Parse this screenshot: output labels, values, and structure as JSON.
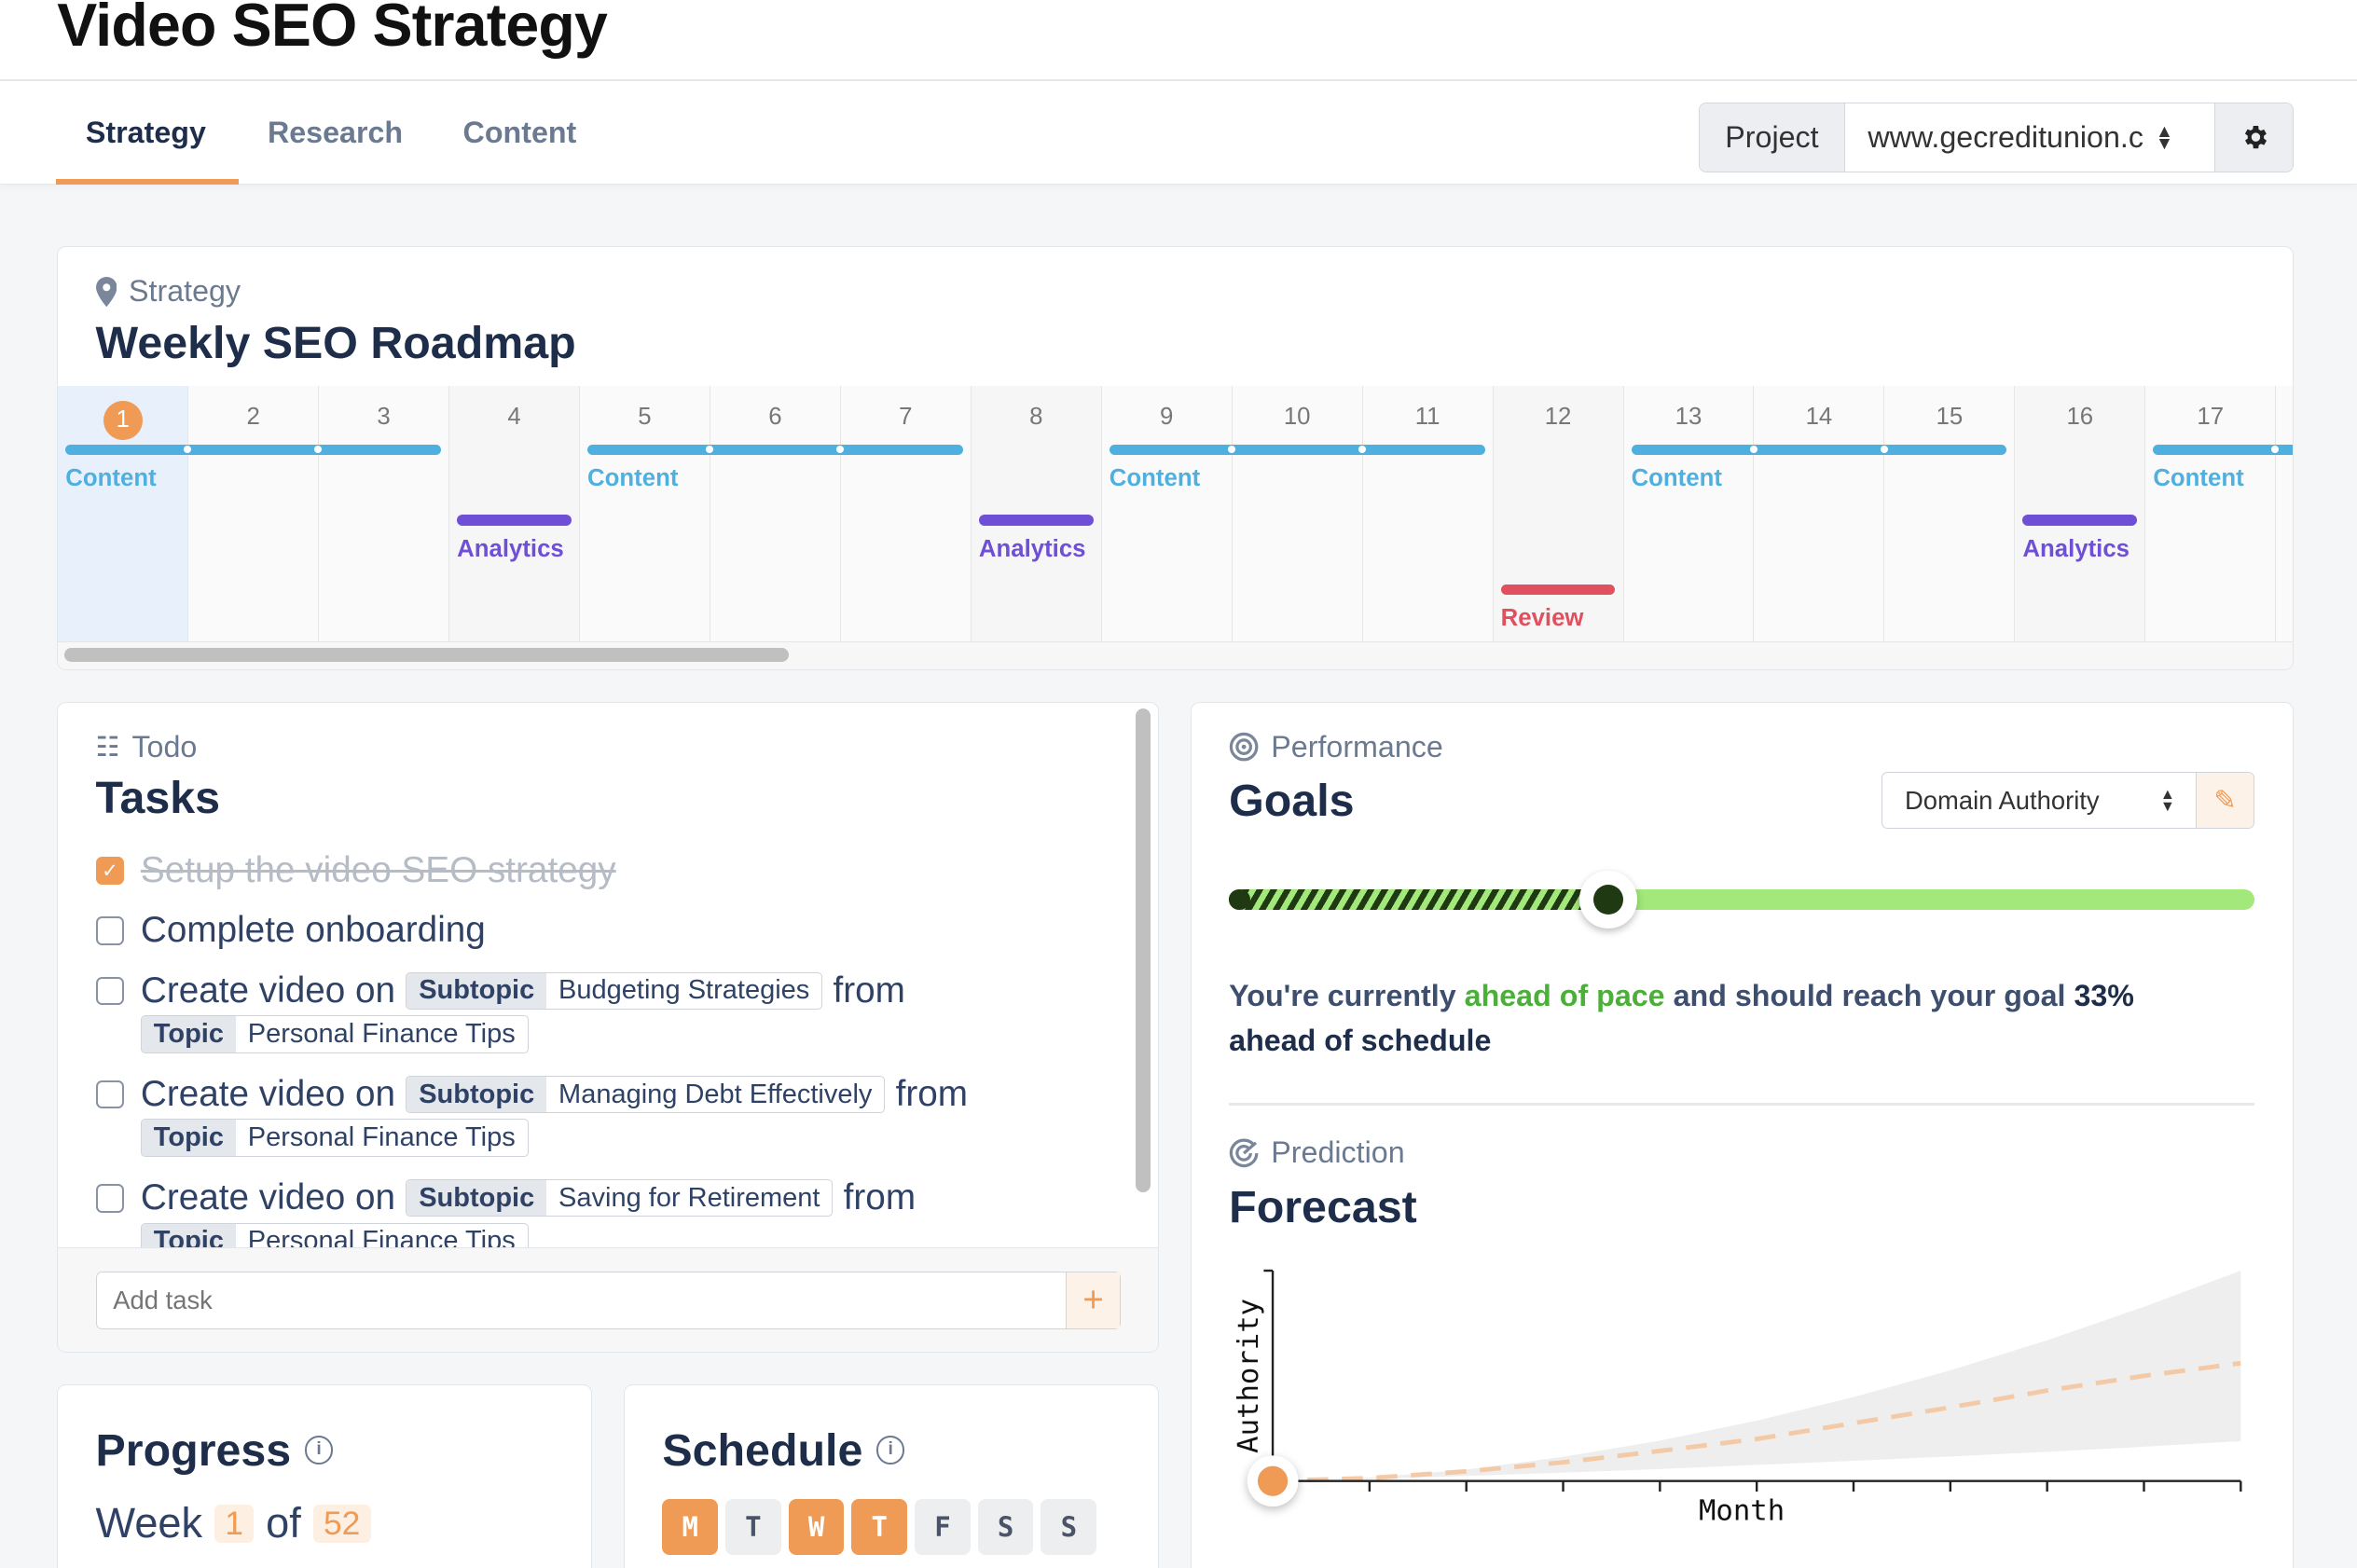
{
  "app": {
    "title": "Video SEO Strategy"
  },
  "tabs": [
    {
      "label": "Strategy",
      "active": true
    },
    {
      "label": "Research"
    },
    {
      "label": "Content"
    }
  ],
  "project": {
    "label": "Project",
    "value": "www.gecreditunion.c",
    "settings_icon": "gear-icon"
  },
  "colors": {
    "accent": "#ef9a55",
    "content": "#4fb0e0",
    "analytics": "#6f4fd6",
    "review": "#e0505f",
    "goal_green": "#a3e87a",
    "goal_dark": "#1f3a12"
  },
  "roadmap": {
    "eyebrow": "Strategy",
    "eyebrow_icon": "map-pin-icon",
    "title": "Weekly SEO Roadmap",
    "current_week": 1,
    "weeks": [
      {
        "n": "1",
        "type": "content",
        "pos": "start",
        "label": "Content"
      },
      {
        "n": "2",
        "type": "content",
        "pos": "mid"
      },
      {
        "n": "3",
        "type": "content",
        "pos": "end"
      },
      {
        "n": "4",
        "type": "analytics",
        "label": "Analytics"
      },
      {
        "n": "5",
        "type": "content",
        "pos": "start",
        "label": "Content"
      },
      {
        "n": "6",
        "type": "content",
        "pos": "mid"
      },
      {
        "n": "7",
        "type": "content",
        "pos": "end"
      },
      {
        "n": "8",
        "type": "analytics",
        "label": "Analytics"
      },
      {
        "n": "9",
        "type": "content",
        "pos": "start",
        "label": "Content"
      },
      {
        "n": "10",
        "type": "content",
        "pos": "mid"
      },
      {
        "n": "11",
        "type": "content",
        "pos": "end"
      },
      {
        "n": "12",
        "type": "review",
        "label": "Review"
      },
      {
        "n": "13",
        "type": "content",
        "pos": "start",
        "label": "Content"
      },
      {
        "n": "14",
        "type": "content",
        "pos": "mid"
      },
      {
        "n": "15",
        "type": "content",
        "pos": "end"
      },
      {
        "n": "16",
        "type": "analytics",
        "label": "Analytics"
      },
      {
        "n": "17",
        "type": "content",
        "pos": "start",
        "label": "Content"
      },
      {
        "n": "",
        "type": "content",
        "pos": "mid"
      }
    ]
  },
  "todo": {
    "eyebrow": "Todo",
    "title": "Tasks",
    "add_placeholder": "Add task",
    "tasks": [
      {
        "text": "Setup the video SEO strategy",
        "done": true
      },
      {
        "text": "Complete onboarding",
        "done": false
      },
      {
        "text": "Create video on",
        "subtopic_label": "Subtopic",
        "subtopic": "Budgeting Strategies",
        "from": "from",
        "topic_label": "Topic",
        "topic": "Personal Finance Tips",
        "done": false
      },
      {
        "text": "Create video on",
        "subtopic_label": "Subtopic",
        "subtopic": "Managing Debt Effectively",
        "from": "from",
        "topic_label": "Topic",
        "topic": "Personal Finance Tips",
        "done": false
      },
      {
        "text": "Create video on",
        "subtopic_label": "Subtopic",
        "subtopic": "Saving for Retirement",
        "from": "from",
        "topic_label": "Topic",
        "topic": "Personal Finance Tips",
        "done": false
      }
    ]
  },
  "goals": {
    "eyebrow": "Performance",
    "title": "Goals",
    "metric": "Domain Authority",
    "progress": 0.37,
    "msg_pre": "You're currently ",
    "msg_hl": "ahead of pace",
    "msg_mid": " and should reach your goal ",
    "msg_pct": "33%",
    "msg_post": "ahead of schedule"
  },
  "forecast": {
    "eyebrow": "Prediction",
    "title": "Forecast"
  },
  "chart_data": {
    "type": "area",
    "xlabel": "Month",
    "ylabel": "Authority",
    "xlim": [
      0,
      10
    ],
    "ylim": [
      0,
      100
    ],
    "grid": false,
    "x": [
      0,
      1,
      2,
      3,
      4,
      5,
      6,
      7,
      8,
      9,
      10
    ],
    "series": [
      {
        "role": "forecast",
        "style": "dashed",
        "values": [
          0,
          1.4,
          4.6,
          8.9,
          14.3,
          20,
          27.5,
          35,
          43,
          50,
          56
        ]
      },
      {
        "role": "upper",
        "values": [
          0,
          1.6,
          5.5,
          11.5,
          19.2,
          28.7,
          39.9,
          52.6,
          66.9,
          82.8,
          100
        ]
      },
      {
        "role": "lower",
        "values": [
          0,
          1,
          2.4,
          4,
          5.7,
          7.7,
          9.6,
          11.7,
          13.9,
          16.3,
          19
        ]
      }
    ]
  },
  "progress": {
    "title": "Progress",
    "week_label": "Week",
    "current": "1",
    "of": "of",
    "total": "52"
  },
  "schedule": {
    "title": "Schedule",
    "days": [
      {
        "d": "M",
        "on": true
      },
      {
        "d": "T",
        "on": false
      },
      {
        "d": "W",
        "on": true
      },
      {
        "d": "T",
        "on": true
      },
      {
        "d": "F",
        "on": false
      },
      {
        "d": "S",
        "on": false
      },
      {
        "d": "S",
        "on": false
      }
    ]
  }
}
